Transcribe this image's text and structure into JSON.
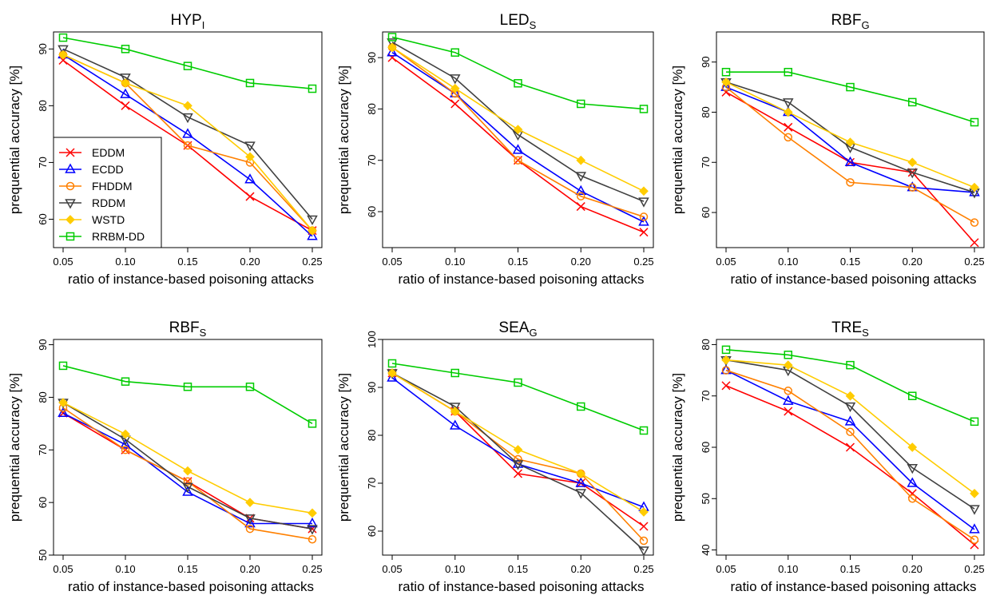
{
  "series_styles": {
    "EDDM": {
      "color": "#ff0000",
      "marker": "x-mark"
    },
    "ECDD": {
      "color": "#0000ff",
      "marker": "triangle-up"
    },
    "FHDDM": {
      "color": "#ff8000",
      "marker": "circle"
    },
    "RDDM": {
      "color": "#404040",
      "marker": "triangle-down"
    },
    "WSTD": {
      "color": "#ffcc00",
      "marker": "diamond"
    },
    "RRBM-DD": {
      "color": "#00cc00",
      "marker": "square"
    }
  },
  "legend": {
    "placement": "bottom-left of first panel",
    "entries": [
      "EDDM",
      "ECDD",
      "FHDDM",
      "RDDM",
      "WSTD",
      "RRBM-DD"
    ]
  },
  "chart_data": [
    {
      "type": "line",
      "title": "HYP",
      "title_sub": "I",
      "xlabel": "ratio of instance-based poisoning attacks",
      "ylabel": "prequential accuracy [%]",
      "x": [
        0.05,
        0.1,
        0.15,
        0.2,
        0.25
      ],
      "x_tick_labels": [
        "0.05",
        "0.10",
        "0.15",
        "0.20",
        "0.25"
      ],
      "ylim": [
        55,
        93
      ],
      "yticks": [
        60,
        70,
        80,
        90
      ],
      "series": [
        {
          "name": "EDDM",
          "values": [
            88,
            80,
            73,
            64,
            58
          ]
        },
        {
          "name": "ECDD",
          "values": [
            89,
            82,
            75,
            67,
            57
          ]
        },
        {
          "name": "FHDDM",
          "values": [
            89,
            84,
            73,
            70,
            58
          ]
        },
        {
          "name": "RDDM",
          "values": [
            90,
            85,
            78,
            73,
            60
          ]
        },
        {
          "name": "WSTD",
          "values": [
            89,
            84,
            80,
            71,
            58
          ]
        },
        {
          "name": "RRBM-DD",
          "values": [
            92,
            90,
            87,
            84,
            83
          ]
        }
      ]
    },
    {
      "type": "line",
      "title": "LED",
      "title_sub": "S",
      "xlabel": "ratio of instance-based poisoning attacks",
      "ylabel": "prequential accuracy [%]",
      "x": [
        0.05,
        0.1,
        0.15,
        0.2,
        0.25
      ],
      "x_tick_labels": [
        "0.05",
        "0.10",
        "0.15",
        "0.20",
        "0.25"
      ],
      "ylim": [
        53,
        95
      ],
      "yticks": [
        60,
        70,
        80,
        90
      ],
      "series": [
        {
          "name": "EDDM",
          "values": [
            90,
            81,
            70,
            61,
            56
          ]
        },
        {
          "name": "ECDD",
          "values": [
            91,
            83,
            72,
            64,
            58
          ]
        },
        {
          "name": "FHDDM",
          "values": [
            92,
            83,
            70,
            63,
            59
          ]
        },
        {
          "name": "RDDM",
          "values": [
            93,
            86,
            75,
            67,
            62
          ]
        },
        {
          "name": "WSTD",
          "values": [
            92,
            84,
            76,
            70,
            64
          ]
        },
        {
          "name": "RRBM-DD",
          "values": [
            94,
            91,
            85,
            81,
            80
          ]
        }
      ]
    },
    {
      "type": "line",
      "title": "RBF",
      "title_sub": "G",
      "xlabel": "ratio of instance-based poisoning attacks",
      "ylabel": "prequential accuracy [%]",
      "x": [
        0.05,
        0.1,
        0.15,
        0.2,
        0.25
      ],
      "x_tick_labels": [
        "0.05",
        "0.10",
        "0.15",
        "0.20",
        "0.25"
      ],
      "ylim": [
        53,
        96
      ],
      "yticks": [
        60,
        70,
        80,
        90
      ],
      "series": [
        {
          "name": "EDDM",
          "values": [
            84,
            77,
            70,
            68,
            54
          ]
        },
        {
          "name": "ECDD",
          "values": [
            85,
            80,
            70,
            65,
            64
          ]
        },
        {
          "name": "FHDDM",
          "values": [
            85,
            75,
            66,
            65,
            58
          ]
        },
        {
          "name": "RDDM",
          "values": [
            86,
            82,
            73,
            68,
            64
          ]
        },
        {
          "name": "WSTD",
          "values": [
            86,
            80,
            74,
            70,
            65
          ]
        },
        {
          "name": "RRBM-DD",
          "values": [
            88,
            88,
            85,
            82,
            78
          ]
        }
      ]
    },
    {
      "type": "line",
      "title": "RBF",
      "title_sub": "S",
      "xlabel": "ratio of instance-based poisoning attacks",
      "ylabel": "prequential accuracy [%]",
      "x": [
        0.05,
        0.1,
        0.15,
        0.2,
        0.25
      ],
      "x_tick_labels": [
        "0.05",
        "0.10",
        "0.15",
        "0.20",
        "0.25"
      ],
      "ylim": [
        50,
        91
      ],
      "yticks": [
        50,
        60,
        70,
        80,
        90
      ],
      "series": [
        {
          "name": "EDDM",
          "values": [
            77,
            70,
            64,
            57,
            55
          ]
        },
        {
          "name": "ECDD",
          "values": [
            77,
            71,
            62,
            56,
            56
          ]
        },
        {
          "name": "FHDDM",
          "values": [
            78,
            70,
            64,
            55,
            53
          ]
        },
        {
          "name": "RDDM",
          "values": [
            79,
            72,
            63,
            57,
            55
          ]
        },
        {
          "name": "WSTD",
          "values": [
            79,
            73,
            66,
            60,
            58
          ]
        },
        {
          "name": "RRBM-DD",
          "values": [
            86,
            83,
            82,
            82,
            75
          ]
        }
      ]
    },
    {
      "type": "line",
      "title": "SEA",
      "title_sub": "G",
      "xlabel": "ratio of instance-based poisoning attacks",
      "ylabel": "prequential accuracy [%]",
      "x": [
        0.05,
        0.1,
        0.15,
        0.2,
        0.25
      ],
      "x_tick_labels": [
        "0.05",
        "0.10",
        "0.15",
        "0.20",
        "0.25"
      ],
      "ylim": [
        55,
        100
      ],
      "yticks": [
        60,
        70,
        80,
        90,
        100
      ],
      "series": [
        {
          "name": "EDDM",
          "values": [
            93,
            85,
            72,
            70,
            61
          ]
        },
        {
          "name": "ECDD",
          "values": [
            92,
            82,
            74,
            70,
            65
          ]
        },
        {
          "name": "FHDDM",
          "values": [
            93,
            85,
            75,
            72,
            58
          ]
        },
        {
          "name": "RDDM",
          "values": [
            93,
            86,
            74,
            68,
            56
          ]
        },
        {
          "name": "WSTD",
          "values": [
            93,
            85,
            77,
            72,
            64
          ]
        },
        {
          "name": "RRBM-DD",
          "values": [
            95,
            93,
            91,
            86,
            81
          ]
        }
      ]
    },
    {
      "type": "line",
      "title": "TRE",
      "title_sub": "S",
      "xlabel": "ratio of instance-based poisoning attacks",
      "ylabel": "prequential accuracy [%]",
      "x": [
        0.05,
        0.1,
        0.15,
        0.2,
        0.25
      ],
      "x_tick_labels": [
        "0.05",
        "0.10",
        "0.15",
        "0.20",
        "0.25"
      ],
      "ylim": [
        39,
        81
      ],
      "yticks": [
        40,
        50,
        60,
        70,
        80
      ],
      "series": [
        {
          "name": "EDDM",
          "values": [
            72,
            67,
            60,
            51,
            41
          ]
        },
        {
          "name": "ECDD",
          "values": [
            75,
            69,
            65,
            53,
            44
          ]
        },
        {
          "name": "FHDDM",
          "values": [
            75,
            71,
            63,
            50,
            42
          ]
        },
        {
          "name": "RDDM",
          "values": [
            77,
            75,
            68,
            56,
            48
          ]
        },
        {
          "name": "WSTD",
          "values": [
            77,
            76,
            70,
            60,
            51
          ]
        },
        {
          "name": "RRBM-DD",
          "values": [
            79,
            78,
            76,
            70,
            65
          ]
        }
      ]
    }
  ]
}
